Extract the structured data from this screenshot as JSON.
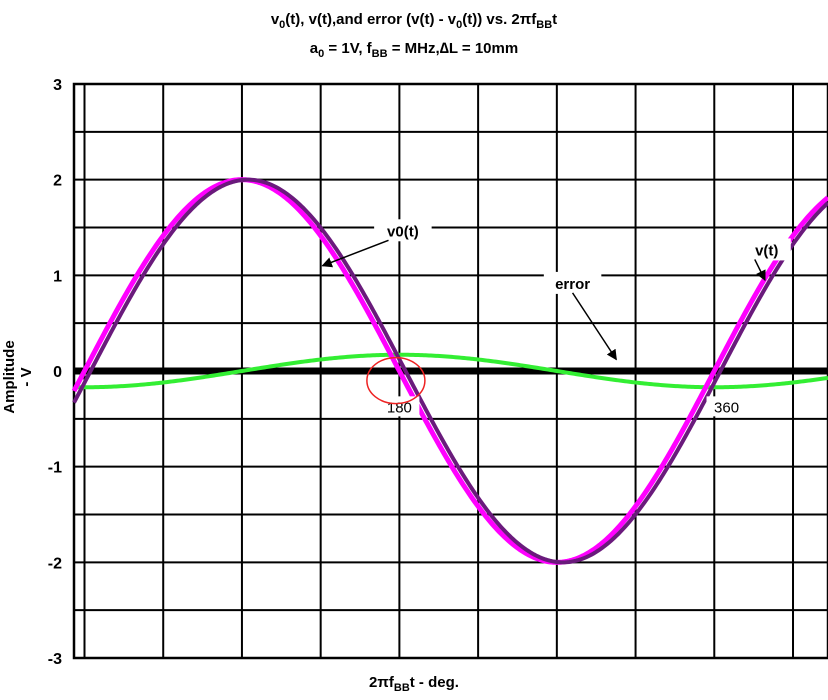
{
  "chart_data": {
    "type": "line",
    "title_line1": {
      "p1": "v",
      "s1": "0",
      "p2": "(t), v(t),and error (v(t) - v",
      "s2": "0",
      "p3": "(t)) vs. 2πf",
      "s3": "BB",
      "p4": "t"
    },
    "title_line2": {
      "p1": "a",
      "s1": "0",
      "p2": " = 1V, f",
      "s2": "BB",
      "p3": " = MHz,∆L = 10mm"
    },
    "xlabel": {
      "p1": "2πf",
      "s1": "BB",
      "p2": "t - deg."
    },
    "ylabel": "Amplitude - V",
    "xlim": [
      -6,
      425
    ],
    "ylim": [
      -3,
      3
    ],
    "yticks": [
      "3",
      "2",
      "1",
      "0",
      "-1",
      "-2",
      "-3"
    ],
    "ytick_values": [
      3,
      2,
      1,
      0,
      -1,
      -2,
      -3
    ],
    "x_grid_step_deg": 45,
    "y_grid_step": 0.5,
    "grid": true,
    "series": [
      {
        "name": "v0(t)",
        "color": "#ff00ff",
        "amplitude": 2,
        "phase_deg": 0
      },
      {
        "name": "v(t)",
        "color": "#6a1a7c",
        "amplitude": 2,
        "phase_deg": -3.5
      },
      {
        "name": "error",
        "color": "#33ee33",
        "amplitude": 0.17,
        "phase_deg": 90,
        "sign": -1
      }
    ],
    "zero_line_color": "#000000",
    "annotations": [
      {
        "text": "v0(t)",
        "label_x": 182,
        "label_y": 1.45,
        "arrow_to_x": 136,
        "arrow_to_y": 1.1
      },
      {
        "text": "v(t)",
        "label_x": 390,
        "label_y": 1.25,
        "arrow_to_x": 389,
        "arrow_to_y": 0.95
      },
      {
        "text": "error",
        "label_x": 279,
        "label_y": 0.9,
        "arrow_to_x": 304,
        "arrow_to_y": 0.12
      }
    ],
    "tick_labels": [
      {
        "text": "180",
        "x": 180,
        "y": -0.38
      },
      {
        "text": "360",
        "x": 367,
        "y": -0.38
      }
    ],
    "highlight_circle": {
      "x": 178,
      "y": -0.1,
      "color": "#ee2222"
    }
  }
}
